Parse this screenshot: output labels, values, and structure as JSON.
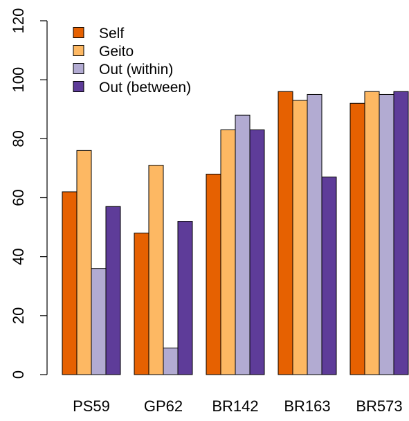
{
  "chart_data": {
    "type": "bar",
    "title": "",
    "xlabel": "",
    "ylabel": "",
    "categories": [
      "PS59",
      "GP62",
      "BR142",
      "BR163",
      "BR573"
    ],
    "series": [
      {
        "name": "Self",
        "color": "#e66101",
        "values": [
          62,
          48,
          68,
          96,
          92
        ]
      },
      {
        "name": "Geito",
        "color": "#fdb863",
        "values": [
          76,
          71,
          83,
          93,
          96
        ]
      },
      {
        "name": "Out (within)",
        "color": "#b2abd2",
        "values": [
          36,
          9,
          88,
          95,
          95
        ]
      },
      {
        "name": "Out (between)",
        "color": "#5e3c99",
        "values": [
          57,
          52,
          83,
          67,
          96
        ]
      }
    ],
    "ylim": [
      0,
      120
    ],
    "yticks": [
      0,
      20,
      40,
      60,
      80,
      100,
      120
    ],
    "legend_position": "top-left",
    "grid": false,
    "bar_outline_color": "#000000"
  }
}
